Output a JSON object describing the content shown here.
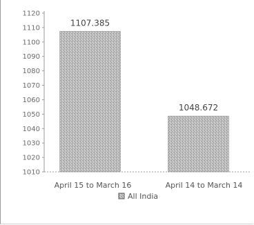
{
  "chart_data": {
    "type": "bar",
    "categories": [
      "April 15 to March 16",
      "April 14 to March 14"
    ],
    "series": [
      {
        "name": "All India",
        "values": [
          1107.385,
          1048.672
        ]
      }
    ],
    "data_labels": [
      "1107.385",
      "1048.672"
    ],
    "y_ticks": [
      "1120",
      "1110",
      "1100",
      "1090",
      "1080",
      "1070",
      "1060",
      "1050",
      "1040",
      "1030",
      "1020",
      "1010"
    ],
    "ylim": [
      1010,
      1120
    ],
    "legend_position": "bottom",
    "grid": false,
    "bar_fill": "#b5b5b5",
    "bar_stroke": "#8d8d8d"
  }
}
